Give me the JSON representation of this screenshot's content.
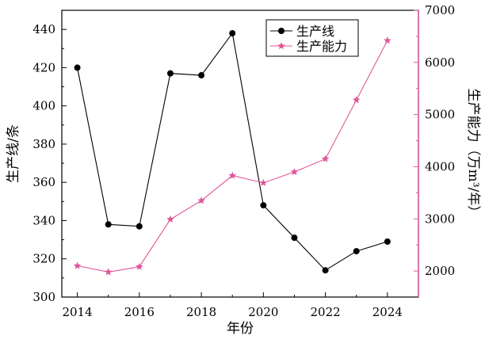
{
  "chart_data": {
    "type": "line",
    "x": [
      2014,
      2015,
      2016,
      2017,
      2018,
      2019,
      2020,
      2021,
      2022,
      2023,
      2024
    ],
    "x_ticks": [
      "2014",
      "2016",
      "2018",
      "2020",
      "2022",
      "2024"
    ],
    "xlabel": "年份",
    "xlim": [
      2013.5,
      2025
    ],
    "ylabel_left": "生产线/条",
    "ylim_left": [
      300,
      450
    ],
    "y_ticks_left": [
      "300",
      "320",
      "340",
      "360",
      "380",
      "400",
      "420",
      "440"
    ],
    "ylabel_right": "生产能力（万m³/年）",
    "ylim_right": [
      1500,
      7000
    ],
    "y_ticks_right": [
      "2000",
      "3000",
      "4000",
      "5000",
      "6000",
      "7000"
    ],
    "series": [
      {
        "name": "生产线",
        "axis": "left",
        "color": "#000000",
        "marker": "circle",
        "values": [
          420,
          338,
          337,
          417,
          416,
          438,
          348,
          331,
          314,
          324,
          329
        ]
      },
      {
        "name": "生产能力",
        "axis": "right",
        "color": "#e0559a",
        "marker": "star",
        "values": [
          2100,
          1980,
          2080,
          2990,
          3350,
          3830,
          3690,
          3900,
          4150,
          5280,
          6420
        ]
      }
    ],
    "legend": "top-center",
    "grid": false
  }
}
